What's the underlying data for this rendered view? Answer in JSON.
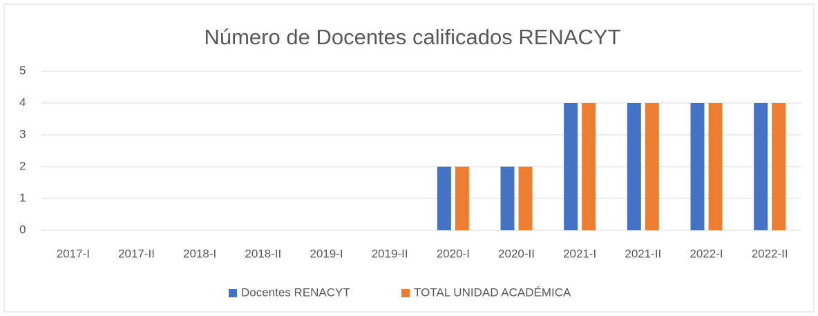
{
  "chart_data": {
    "type": "bar",
    "title": "Número de Docentes calificados RENACYT",
    "categories": [
      "2017-I",
      "2017-II",
      "2018-I",
      "2018-II",
      "2019-I",
      "2019-II",
      "2020-I",
      "2020-II",
      "2021-I",
      "2021-II",
      "2022-I",
      "2022-II"
    ],
    "series": [
      {
        "name": "Docentes RENACYT",
        "color": "#4472c4",
        "values": [
          0,
          0,
          0,
          0,
          0,
          0,
          2,
          2,
          4,
          4,
          4,
          4
        ]
      },
      {
        "name": "TOTAL UNIDAD ACADÉMICA",
        "color": "#ed7d31",
        "values": [
          0,
          0,
          0,
          0,
          0,
          0,
          2,
          2,
          4,
          4,
          4,
          4
        ]
      }
    ],
    "ylim": [
      0,
      5
    ],
    "yticks": [
      0,
      1,
      2,
      3,
      4,
      5
    ],
    "grid": true,
    "legend": "bottom"
  }
}
